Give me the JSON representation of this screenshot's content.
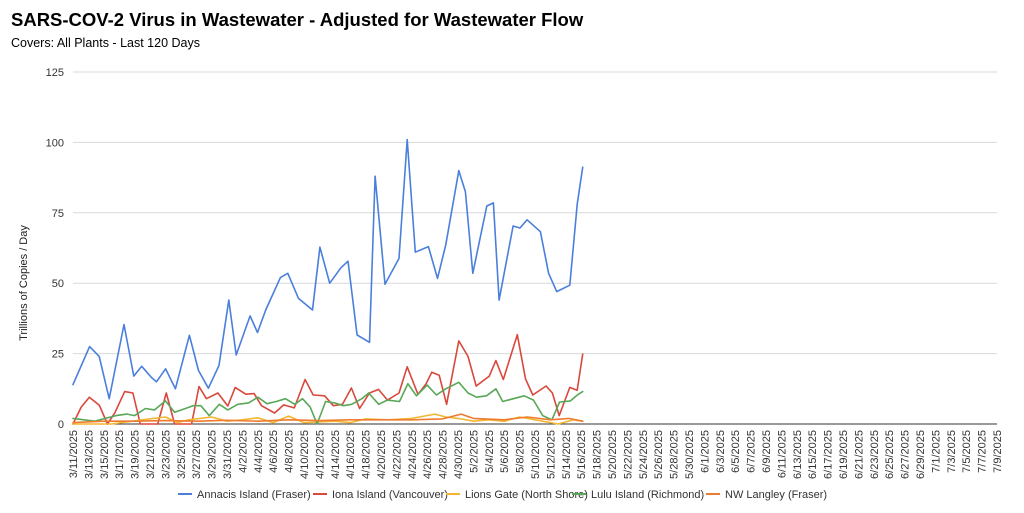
{
  "chart_data": {
    "type": "line",
    "title": "SARS-COV-2 Virus in Wastewater - Adjusted for Wastewater Flow",
    "subtitle": "Covers: All Plants - Last 120 Days",
    "ylabel": "Trillions of Copies / Day",
    "xlabel": "",
    "ylim": [
      0,
      125
    ],
    "yticks": [
      0,
      25,
      50,
      75,
      100,
      125
    ],
    "grid": true,
    "legend_position": "bottom",
    "x_tick_labels": [
      "3/11/2025",
      "3/13/2025",
      "3/15/2025",
      "3/17/2025",
      "3/19/2025",
      "3/21/2025",
      "3/23/2025",
      "3/25/2025",
      "3/27/2025",
      "3/29/2025",
      "3/31/2025",
      "4/2/2025",
      "4/4/2025",
      "4/6/2025",
      "4/8/2025",
      "4/10/2025",
      "4/12/2025",
      "4/14/2025",
      "4/16/2025",
      "4/18/2025",
      "4/20/2025",
      "4/22/2025",
      "4/24/2025",
      "4/26/2025",
      "4/28/2025",
      "4/30/2025",
      "5/2/2025",
      "5/4/2025",
      "5/6/2025",
      "5/8/2025",
      "5/10/2025",
      "5/12/2025",
      "5/14/2025",
      "5/16/2025",
      "5/18/2025",
      "5/20/2025",
      "5/22/2025",
      "5/24/2025",
      "5/26/2025",
      "5/28/2025",
      "5/30/2025",
      "6/1/2025",
      "6/3/2025",
      "6/5/2025",
      "6/7/2025",
      "6/9/2025",
      "6/11/2025",
      "6/13/2025",
      "6/15/2025",
      "6/17/2025",
      "6/19/2025",
      "6/21/2025",
      "6/23/2025",
      "6/25/2025",
      "6/27/2025",
      "6/29/2025",
      "7/1/2025",
      "7/3/2025",
      "7/5/2025",
      "7/7/2025",
      "7/9/2025"
    ],
    "series": [
      {
        "name": "Annacis Island (Fraser)",
        "color": "#4a7fdc",
        "points": [
          [
            0,
            14
          ],
          [
            1.08,
            27.5
          ],
          [
            1.7,
            24
          ],
          [
            2.35,
            9
          ],
          [
            3.31,
            35.3
          ],
          [
            3.95,
            17
          ],
          [
            4.46,
            20.5
          ],
          [
            5.1,
            16.5
          ],
          [
            5.42,
            15
          ],
          [
            6.01,
            19.6
          ],
          [
            6.65,
            12.5
          ],
          [
            7.56,
            31.5
          ],
          [
            8.15,
            19
          ],
          [
            8.79,
            12.7
          ],
          [
            9.48,
            20.8
          ],
          [
            10.12,
            44
          ],
          [
            10.6,
            24.5
          ],
          [
            11.5,
            38.4
          ],
          [
            11.98,
            32.5
          ],
          [
            12.51,
            40.5
          ],
          [
            13.47,
            52
          ],
          [
            13.95,
            53.5
          ],
          [
            14.64,
            44.6
          ],
          [
            15.55,
            40.5
          ],
          [
            16.03,
            62.8
          ],
          [
            16.67,
            50
          ],
          [
            17.4,
            55.5
          ],
          [
            17.86,
            57.8
          ],
          [
            18.45,
            31.6
          ],
          [
            19.25,
            29
          ],
          [
            19.62,
            88
          ],
          [
            20.26,
            49.6
          ],
          [
            21.17,
            58.8
          ],
          [
            21.7,
            101
          ],
          [
            22.23,
            61
          ],
          [
            23.08,
            63
          ],
          [
            23.67,
            51.7
          ],
          [
            24.2,
            63.5
          ],
          [
            25.05,
            90
          ],
          [
            25.48,
            82.5
          ],
          [
            25.96,
            53.5
          ],
          [
            26.87,
            77.4
          ],
          [
            27.3,
            78.5
          ],
          [
            27.67,
            44
          ],
          [
            28.58,
            70.3
          ],
          [
            29.02,
            69.6
          ],
          [
            29.49,
            72.5
          ],
          [
            30.35,
            68.3
          ],
          [
            30.88,
            53.5
          ],
          [
            31.41,
            47
          ],
          [
            32.26,
            49.3
          ],
          [
            32.74,
            78
          ],
          [
            33.1,
            91.2
          ]
        ]
      },
      {
        "name": "Iona Island (Vancouver)",
        "color": "#d9483b",
        "points": [
          [
            0,
            0
          ],
          [
            0.53,
            6
          ],
          [
            1.06,
            9.5
          ],
          [
            1.7,
            6.7
          ],
          [
            2.24,
            0
          ],
          [
            2.72,
            4
          ],
          [
            3.36,
            11.5
          ],
          [
            3.89,
            11
          ],
          [
            4.37,
            0
          ],
          [
            5.5,
            0
          ],
          [
            6.06,
            11
          ],
          [
            6.6,
            0
          ],
          [
            7.7,
            0
          ],
          [
            8.18,
            13.3
          ],
          [
            8.66,
            9
          ],
          [
            9.41,
            11
          ],
          [
            10.05,
            6.4
          ],
          [
            10.53,
            13
          ],
          [
            11.22,
            10.6
          ],
          [
            11.76,
            10.8
          ],
          [
            12.24,
            6.5
          ],
          [
            13.09,
            3.9
          ],
          [
            13.68,
            6.8
          ],
          [
            14.37,
            5.7
          ],
          [
            15.07,
            15.8
          ],
          [
            15.6,
            10.3
          ],
          [
            16.34,
            10
          ],
          [
            16.9,
            6.5
          ],
          [
            17.5,
            7
          ],
          [
            18.08,
            12.8
          ],
          [
            18.61,
            5.5
          ],
          [
            19.25,
            11
          ],
          [
            19.84,
            12.3
          ],
          [
            20.42,
            8.5
          ],
          [
            21.17,
            11
          ],
          [
            21.7,
            20.3
          ],
          [
            22.4,
            10.5
          ],
          [
            22.93,
            14.3
          ],
          [
            23.3,
            18.4
          ],
          [
            23.78,
            17.3
          ],
          [
            24.26,
            7
          ],
          [
            25.05,
            29.5
          ],
          [
            25.65,
            24
          ],
          [
            26.18,
            13.5
          ],
          [
            27.03,
            17
          ],
          [
            27.46,
            22.5
          ],
          [
            27.94,
            15.8
          ],
          [
            28.85,
            31.7
          ],
          [
            29.38,
            16
          ],
          [
            29.86,
            10.3
          ],
          [
            30.72,
            13.5
          ],
          [
            31.13,
            11
          ],
          [
            31.57,
            3
          ],
          [
            32.26,
            13
          ],
          [
            32.74,
            12
          ],
          [
            33.1,
            24.8
          ]
        ]
      },
      {
        "name": "Lions Gate (North Shore)",
        "color": "#f2b630",
        "points": [
          [
            0,
            0
          ],
          [
            2.5,
            0
          ],
          [
            4.5,
            1.5
          ],
          [
            6,
            2.5
          ],
          [
            6.8,
            0.5
          ],
          [
            7.5,
            1.5
          ],
          [
            9,
            2.5
          ],
          [
            10,
            1
          ],
          [
            11,
            1.5
          ],
          [
            12,
            2.2
          ],
          [
            13,
            0.5
          ],
          [
            14,
            2.8
          ],
          [
            15,
            0.5
          ],
          [
            17,
            1
          ],
          [
            18,
            0.5
          ],
          [
            19,
            1.8
          ],
          [
            20.5,
            1.5
          ],
          [
            22,
            2
          ],
          [
            23.5,
            3.5
          ],
          [
            24.2,
            2.5
          ],
          [
            25,
            2
          ],
          [
            26,
            1
          ],
          [
            27,
            1.5
          ],
          [
            28,
            1
          ],
          [
            29,
            2.5
          ],
          [
            30,
            1.5
          ],
          [
            31,
            0.5
          ],
          [
            31.5,
            0
          ],
          [
            32.5,
            1.5
          ],
          [
            33.1,
            1
          ]
        ]
      },
      {
        "name": "Lulu Island (Richmond)",
        "color": "#58a858",
        "points": [
          [
            0,
            2
          ],
          [
            0.7,
            1.5
          ],
          [
            1.4,
            1
          ],
          [
            2.1,
            2
          ],
          [
            2.8,
            3
          ],
          [
            3.5,
            3.5
          ],
          [
            4,
            3
          ],
          [
            4.7,
            5.5
          ],
          [
            5.3,
            5
          ],
          [
            6,
            8.2
          ],
          [
            6.6,
            4.2
          ],
          [
            7.3,
            5.5
          ],
          [
            7.8,
            6.5
          ],
          [
            8.3,
            6.5
          ],
          [
            8.85,
            3
          ],
          [
            9.5,
            7
          ],
          [
            10.05,
            5
          ],
          [
            10.7,
            7
          ],
          [
            11.4,
            7.5
          ],
          [
            12,
            9.5
          ],
          [
            12.6,
            7.2
          ],
          [
            13.2,
            8
          ],
          [
            13.8,
            9
          ],
          [
            14.4,
            7
          ],
          [
            14.9,
            9
          ],
          [
            15.4,
            6
          ],
          [
            15.85,
            0
          ],
          [
            16.4,
            8
          ],
          [
            17,
            7.5
          ],
          [
            17.55,
            6.5
          ],
          [
            18.1,
            7
          ],
          [
            18.75,
            9
          ],
          [
            19.2,
            11
          ],
          [
            19.85,
            7
          ],
          [
            20.4,
            8.5
          ],
          [
            21.2,
            8
          ],
          [
            21.75,
            14.3
          ],
          [
            22.3,
            10
          ],
          [
            23,
            13.8
          ],
          [
            23.6,
            10.3
          ],
          [
            24.2,
            12.5
          ],
          [
            25.05,
            14.8
          ],
          [
            25.65,
            11
          ],
          [
            26.2,
            9.5
          ],
          [
            26.85,
            10
          ],
          [
            27.46,
            12.5
          ],
          [
            27.9,
            8
          ],
          [
            28.6,
            9
          ],
          [
            29.3,
            10
          ],
          [
            29.9,
            8.5
          ],
          [
            30.5,
            3
          ],
          [
            31.1,
            1.5
          ],
          [
            31.6,
            7.8
          ],
          [
            32.3,
            8.2
          ],
          [
            32.8,
            10.5
          ],
          [
            33.1,
            11.5
          ]
        ]
      },
      {
        "name": "NW Langley (Fraser)",
        "color": "#ee7b30",
        "points": [
          [
            0,
            0.5
          ],
          [
            2,
            1
          ],
          [
            4,
            1
          ],
          [
            6,
            1.2
          ],
          [
            8,
            1
          ],
          [
            10,
            1.3
          ],
          [
            12,
            1
          ],
          [
            14,
            1.5
          ],
          [
            16,
            1.2
          ],
          [
            18,
            1.5
          ],
          [
            20,
            1.5
          ],
          [
            22,
            1.5
          ],
          [
            24,
            1.8
          ],
          [
            25.2,
            3.5
          ],
          [
            26,
            2
          ],
          [
            28,
            1.5
          ],
          [
            29.5,
            2.5
          ],
          [
            31,
            1.5
          ],
          [
            32.2,
            2
          ],
          [
            33.1,
            1
          ]
        ]
      }
    ]
  }
}
